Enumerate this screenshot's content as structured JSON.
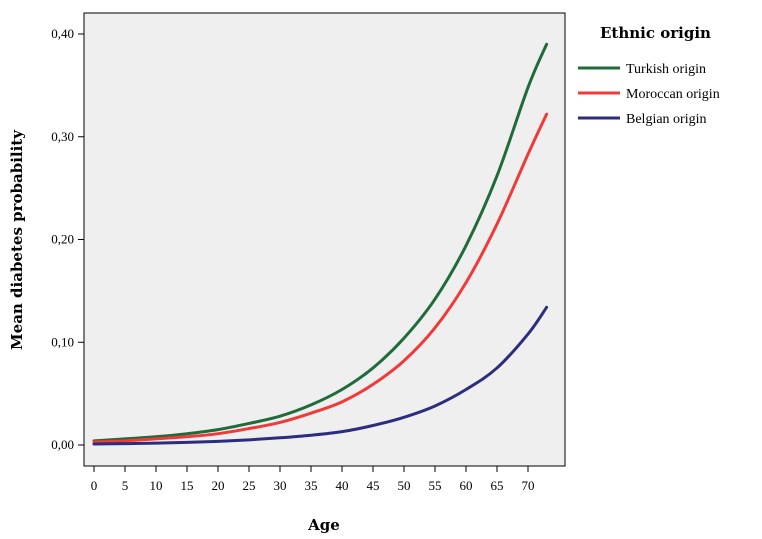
{
  "chart_data": {
    "type": "line",
    "title": "",
    "xlabel": "Age",
    "ylabel": "Mean diabetes probability",
    "xlim": [
      0,
      74
    ],
    "ylim": [
      0,
      0.4
    ],
    "x_ticks": [
      0,
      5,
      10,
      15,
      20,
      25,
      30,
      35,
      40,
      45,
      50,
      55,
      60,
      65,
      70
    ],
    "x_tick_labels": [
      "0",
      "5",
      "10",
      "15",
      "20",
      "25",
      "30",
      "35",
      "40",
      "45",
      "50",
      "55",
      "60",
      "65",
      "70"
    ],
    "y_ticks": [
      0,
      0.1,
      0.2,
      0.3,
      0.4
    ],
    "y_tick_labels": [
      "0,00",
      "0,10",
      "0,20",
      "0,30",
      "0,40"
    ],
    "grid": false,
    "legend": {
      "title": "Ethnic origin",
      "position": "right"
    },
    "x": [
      0,
      5,
      10,
      15,
      20,
      25,
      30,
      35,
      40,
      45,
      50,
      55,
      60,
      65,
      70,
      73
    ],
    "series": [
      {
        "name": "Turkish origin",
        "color": "#1f6b3a",
        "values": [
          0.004,
          0.006,
          0.008,
          0.011,
          0.015,
          0.021,
          0.028,
          0.039,
          0.054,
          0.075,
          0.104,
          0.142,
          0.194,
          0.262,
          0.348,
          0.39
        ]
      },
      {
        "name": "Moroccan origin",
        "color": "#f03a3a",
        "values": [
          0.003,
          0.004,
          0.006,
          0.008,
          0.011,
          0.016,
          0.022,
          0.031,
          0.042,
          0.059,
          0.082,
          0.114,
          0.158,
          0.215,
          0.283,
          0.322
        ]
      },
      {
        "name": "Belgian origin",
        "color": "#2d2d80",
        "values": [
          0.001,
          0.0013,
          0.0018,
          0.0025,
          0.0035,
          0.005,
          0.007,
          0.0095,
          0.013,
          0.019,
          0.027,
          0.038,
          0.054,
          0.075,
          0.108,
          0.134
        ]
      }
    ]
  }
}
